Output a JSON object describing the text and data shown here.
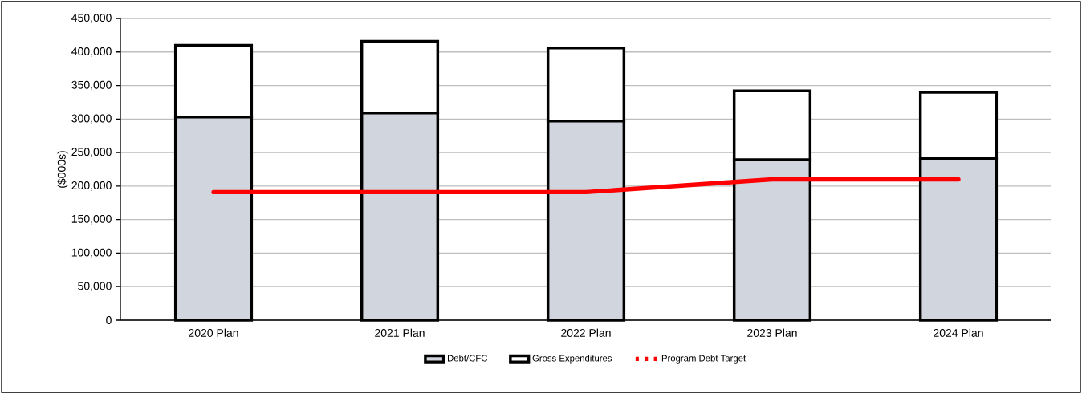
{
  "chart_data": {
    "type": "bar",
    "stacked": true,
    "ylabel": "($000s)",
    "categories": [
      "2020 Plan",
      "2021 Plan",
      "2022 Plan",
      "2023 Plan",
      "2024 Plan"
    ],
    "series": [
      {
        "name": "Debt/CFC",
        "color": "#d1d5dd",
        "values": [
          303000,
          309000,
          297000,
          239000,
          241000
        ]
      },
      {
        "name": "Gross Expenditures",
        "color": "#ffffff",
        "values": [
          107000,
          107000,
          109000,
          103000,
          99000
        ]
      },
      {
        "name": "Program Debt Target",
        "type": "line",
        "color": "#ff0000",
        "values": [
          191000,
          191000,
          191000,
          210000,
          210000
        ]
      }
    ],
    "ylim": [
      0,
      450000
    ],
    "yticks": [
      {
        "value": 0,
        "label": "0"
      },
      {
        "value": 50000,
        "label": "50,000"
      },
      {
        "value": 100000,
        "label": "100,000"
      },
      {
        "value": 150000,
        "label": "150,000"
      },
      {
        "value": 200000,
        "label": "200,000"
      },
      {
        "value": 250000,
        "label": "250,000"
      },
      {
        "value": 300000,
        "label": "300,000"
      },
      {
        "value": 350000,
        "label": "350,000"
      },
      {
        "value": 400000,
        "label": "400,000"
      },
      {
        "value": 450000,
        "label": "450,000"
      }
    ],
    "grid": "y",
    "legend": "bottom"
  }
}
